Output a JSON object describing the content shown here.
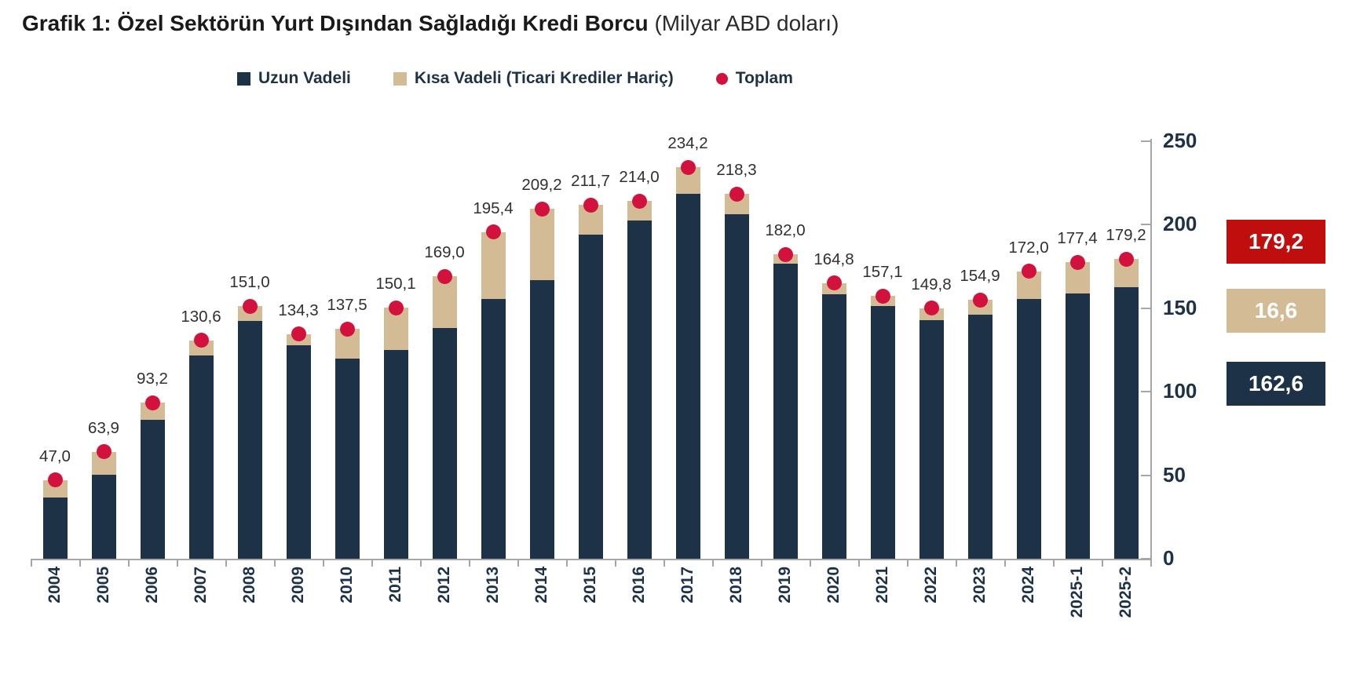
{
  "title": {
    "bold": "Grafik 1: Özel Sektörün Yurt Dışından Sağladığı Kredi Borcu",
    "suffix": " (Milyar ABD doları)"
  },
  "legend": [
    {
      "label": "Uzun Vadeli",
      "marker": "square",
      "color": "#1e3247"
    },
    {
      "label": "Kısa Vadeli (Ticari Krediler Hariç)",
      "marker": "square",
      "color": "#d3bc95"
    },
    {
      "label": "Toplam",
      "marker": "circle",
      "color": "#d2123d"
    }
  ],
  "colors": {
    "long_term": "#1e3247",
    "short_term": "#d3bc95",
    "total_marker": "#d2123d",
    "axis": "#a6a6a6",
    "tick_text": "#1e3247",
    "data_label_text": "#303030",
    "summary_red": "#c00d0d"
  },
  "chart_data": {
    "type": "bar",
    "subtype": "stacked-bar-with-total-markers",
    "title": "Grafik 1: Özel Sektörün Yurt Dışından Sağladığı Kredi Borcu (Milyar ABD doları)",
    "categories": [
      "2004",
      "2005",
      "2006",
      "2007",
      "2008",
      "2009",
      "2010",
      "2011",
      "2012",
      "2013",
      "2014",
      "2015",
      "2016",
      "2017",
      "2018",
      "2019",
      "2020",
      "2021",
      "2022",
      "2023",
      "2024",
      "2025-1",
      "2025-2"
    ],
    "series": [
      {
        "name": "Uzun Vadeli",
        "color": "#1e3247",
        "values": [
          36.6,
          50.2,
          83.0,
          121.7,
          142.1,
          127.7,
          119.7,
          124.9,
          138.0,
          155.4,
          166.7,
          194.0,
          202.3,
          218.5,
          206.0,
          176.5,
          158.2,
          151.0,
          142.8,
          146.0,
          155.6,
          158.6,
          162.6
        ]
      },
      {
        "name": "Kısa Vadeli (Ticari Krediler Hariç)",
        "color": "#d3bc95",
        "values": [
          10.4,
          13.7,
          10.2,
          8.9,
          8.9,
          6.6,
          17.8,
          25.2,
          31.0,
          40.0,
          42.5,
          17.7,
          11.7,
          15.7,
          12.3,
          5.5,
          6.6,
          6.1,
          7.0,
          8.9,
          16.4,
          18.8,
          16.6
        ]
      }
    ],
    "totals": [
      47.0,
      63.9,
      93.2,
      130.6,
      151.0,
      134.3,
      137.5,
      150.1,
      169.0,
      195.4,
      209.2,
      211.7,
      214.0,
      234.2,
      218.3,
      182.0,
      164.8,
      157.1,
      149.8,
      154.9,
      172.0,
      177.4,
      179.2
    ],
    "total_labels": [
      "47,0",
      "63,9",
      "93,2",
      "130,6",
      "151,0",
      "134,3",
      "137,5",
      "150,1",
      "169,0",
      "195,4",
      "209,2",
      "211,7",
      "214,0",
      "234,2",
      "218,3",
      "182,0",
      "164,8",
      "157,1",
      "149,8",
      "154,9",
      "172,0",
      "177,4",
      "179,2"
    ],
    "marker_series_name": "Toplam",
    "xlabel": "",
    "ylabel": "",
    "ylim": [
      0,
      250
    ],
    "yticks": [
      0,
      50,
      100,
      150,
      200,
      250
    ],
    "ytick_labels": [
      "0",
      "50",
      "100",
      "150",
      "200",
      "250"
    ],
    "grid": false,
    "legend_position": "top",
    "y_axis_side": "right"
  },
  "side_boxes": [
    {
      "value": "179,2",
      "meaning": "Toplam",
      "bg": "#c00d0d"
    },
    {
      "value": "16,6",
      "meaning": "Kısa Vadeli (Ticari Krediler Hariç)",
      "bg": "#d3bc95"
    },
    {
      "value": "162,6",
      "meaning": "Uzun Vadeli",
      "bg": "#1e3247"
    }
  ]
}
